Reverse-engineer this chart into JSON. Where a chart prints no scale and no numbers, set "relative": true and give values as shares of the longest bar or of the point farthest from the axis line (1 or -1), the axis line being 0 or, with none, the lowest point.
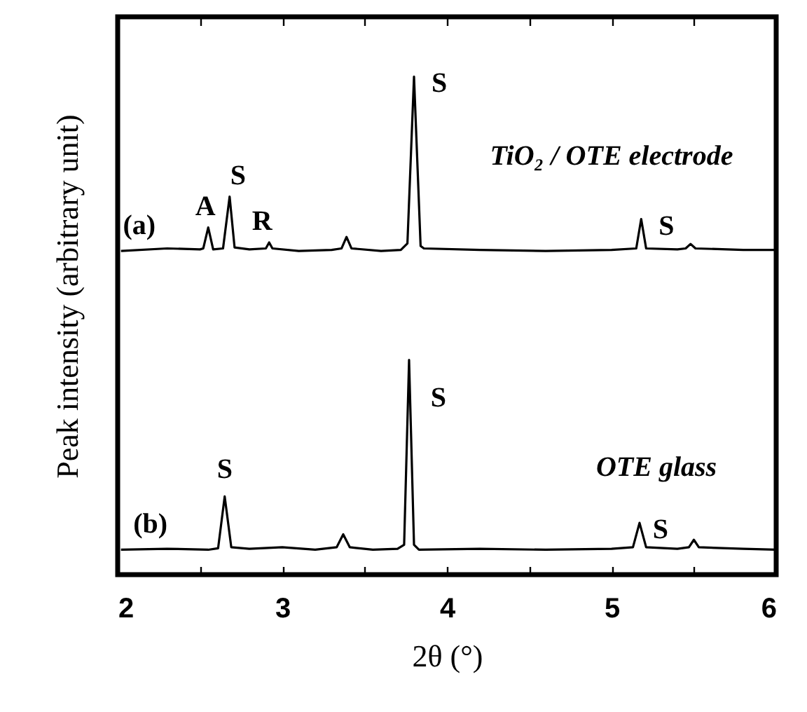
{
  "chart_data": {
    "type": "line",
    "relative": true,
    "xlabel": "2θ (°)",
    "ylabel": "Peak intensity (arbitrary unit)",
    "xlim": [
      2,
      6
    ],
    "xticks": [
      2,
      {
        "value": 2.5,
        "label": null
      },
      3,
      {
        "value": 3.5,
        "label": null
      },
      4,
      {
        "value": 4.5,
        "label": null
      },
      5,
      {
        "value": 5.5,
        "label": null
      },
      6
    ],
    "grid": false,
    "marker": "none",
    "line_style": "solid",
    "series": [
      {
        "color": "#000000",
        "x": [
          2.02,
          2.3,
          2.5,
          2.52,
          2.55,
          2.58,
          2.64,
          2.68,
          2.71,
          2.8,
          2.9,
          2.92,
          2.94,
          3.1,
          3.3,
          3.36,
          3.39,
          3.42,
          3.6,
          3.72,
          3.76,
          3.8,
          3.84,
          3.86,
          4.2,
          4.6,
          5.0,
          5.15,
          5.18,
          5.21,
          5.4,
          5.45,
          5.48,
          5.51,
          5.8,
          6.0
        ],
        "values": [
          0.65,
          0.655,
          0.653,
          0.655,
          0.697,
          0.653,
          0.655,
          0.759,
          0.657,
          0.653,
          0.655,
          0.667,
          0.655,
          0.65,
          0.652,
          0.655,
          0.678,
          0.655,
          0.65,
          0.652,
          0.665,
          1,
          0.66,
          0.655,
          0.652,
          0.65,
          0.652,
          0.655,
          0.714,
          0.655,
          0.653,
          0.655,
          0.664,
          0.655,
          0.652,
          0.652
        ]
      },
      {
        "color": "#000000",
        "x": [
          2.02,
          2.3,
          2.55,
          2.61,
          2.65,
          2.69,
          2.8,
          3.0,
          3.2,
          3.33,
          3.37,
          3.41,
          3.55,
          3.7,
          3.74,
          3.77,
          3.8,
          3.83,
          4.2,
          4.6,
          5.0,
          5.13,
          5.17,
          5.21,
          5.4,
          5.47,
          5.5,
          5.53,
          5.8,
          6.0
        ],
        "values": [
          0.05,
          0.052,
          0.05,
          0.053,
          0.157,
          0.055,
          0.052,
          0.055,
          0.05,
          0.055,
          0.081,
          0.055,
          0.05,
          0.052,
          0.06,
          0.431,
          0.06,
          0.05,
          0.052,
          0.05,
          0.052,
          0.055,
          0.104,
          0.055,
          0.052,
          0.055,
          0.07,
          0.055,
          0.052,
          0.05
        ]
      }
    ],
    "annotations": [
      {
        "text": "(a)",
        "x": 2.02,
        "y": 0.65
      },
      {
        "text": "A",
        "x": 2.55,
        "y": 0.697
      },
      {
        "text": "S",
        "x": 2.68,
        "y": 0.759
      },
      {
        "text": "R",
        "x": 2.92,
        "y": 0.667
      },
      {
        "text": "S",
        "x": 3.8,
        "y": 1
      },
      {
        "text": "TiO₂ / OTE electrode",
        "x": 5.0,
        "y": 0.652
      },
      {
        "text": "S",
        "x": 5.18,
        "y": 0.714
      },
      {
        "text": "(b)",
        "x": 2.02,
        "y": 0.05
      },
      {
        "text": "S",
        "x": 2.65,
        "y": 0.157
      },
      {
        "text": "S",
        "x": 3.77,
        "y": 0.431
      },
      {
        "text": "OTE glass",
        "x": 5.0,
        "y": 0.052
      },
      {
        "text": "S",
        "x": 5.17,
        "y": 0.104
      }
    ]
  }
}
